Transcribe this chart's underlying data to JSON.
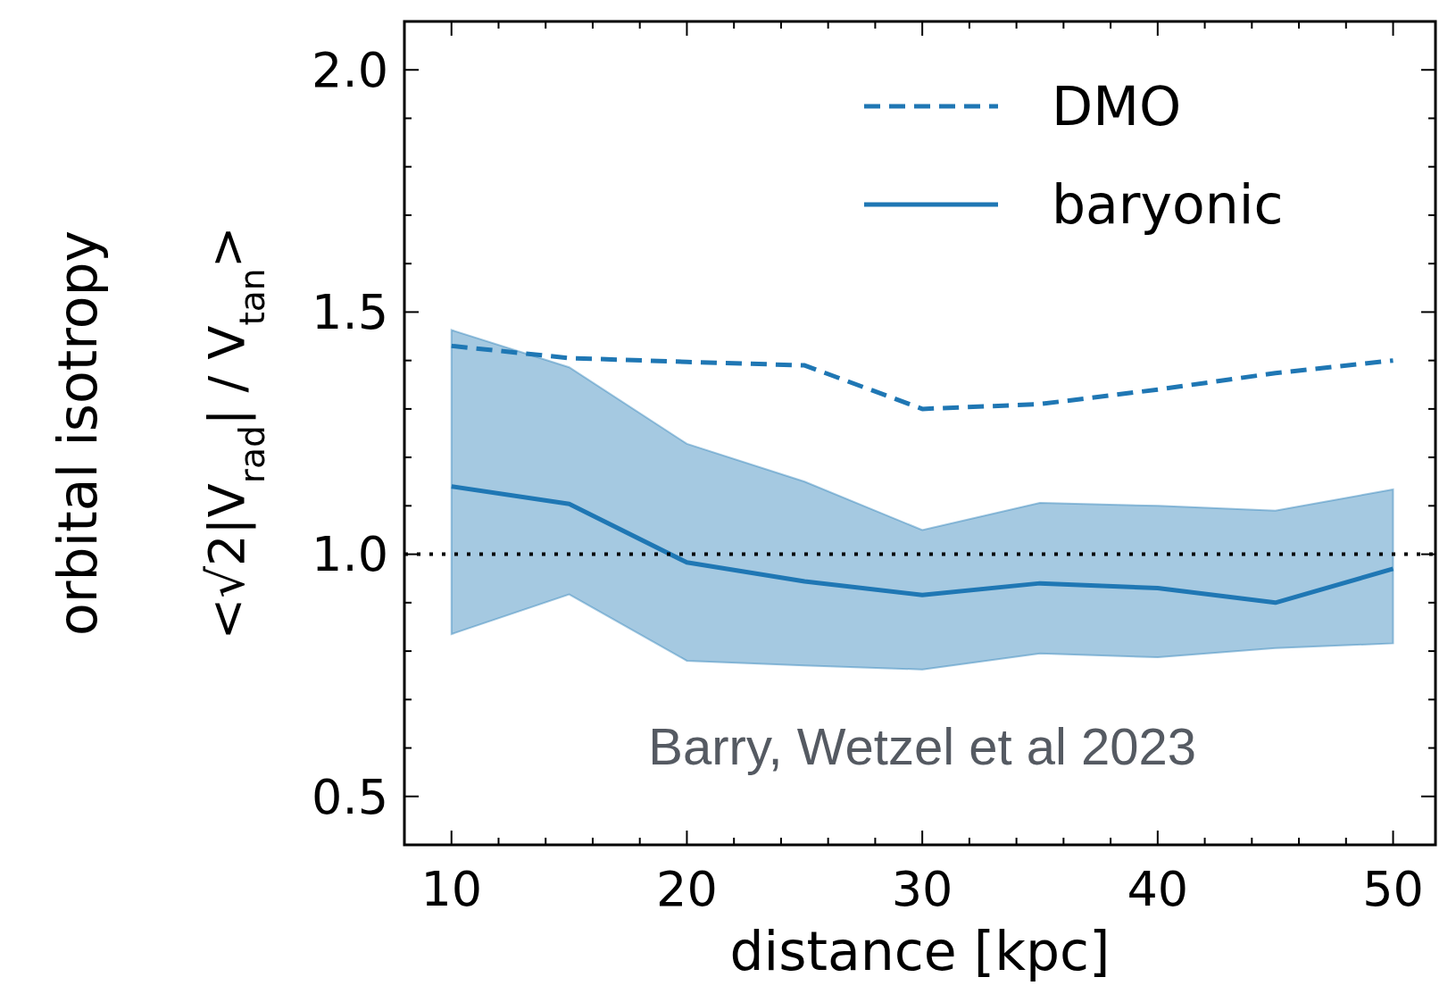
{
  "chart_data": {
    "type": "line",
    "xlabel": "distance [kpc]",
    "ylabel": "orbital isotropy\n<√2|V$_{rad}$| / V$_{tan}$>",
    "x": [
      10,
      15,
      20,
      25,
      30,
      35,
      40,
      45,
      50
    ],
    "series": [
      {
        "name": "DMO",
        "color": "#1f77b4",
        "line_style": "dashed",
        "values": [
          1.43,
          1.405,
          1.397,
          1.39,
          1.3,
          1.31,
          1.34,
          1.374,
          1.4
        ]
      },
      {
        "name": "baryonic",
        "color": "#1f77b4",
        "line_style": "solid",
        "values": [
          1.14,
          1.104,
          0.983,
          0.944,
          0.916,
          0.94,
          0.93,
          0.9,
          0.97
        ],
        "lower": [
          0.835,
          0.917,
          0.78,
          0.77,
          0.762,
          0.795,
          0.787,
          0.806,
          0.816
        ],
        "upper": [
          1.463,
          1.386,
          1.228,
          1.15,
          1.05,
          1.106,
          1.1,
          1.09,
          1.134
        ]
      }
    ],
    "xlim": [
      8,
      51.8
    ],
    "ylim": [
      0.4,
      2.1
    ],
    "xticks": [
      10,
      {
        "value": 12,
        "label": null
      },
      {
        "value": 14,
        "label": null
      },
      {
        "value": 16,
        "label": null
      },
      {
        "value": 18,
        "label": null
      },
      20,
      {
        "value": 22,
        "label": null
      },
      {
        "value": 24,
        "label": null
      },
      {
        "value": 26,
        "label": null
      },
      {
        "value": 28,
        "label": null
      },
      30,
      {
        "value": 32,
        "label": null
      },
      {
        "value": 34,
        "label": null
      },
      {
        "value": 36,
        "label": null
      },
      {
        "value": 38,
        "label": null
      },
      40,
      {
        "value": 42,
        "label": null
      },
      {
        "value": 44,
        "label": null
      },
      {
        "value": 46,
        "label": null
      },
      {
        "value": 48,
        "label": null
      },
      50
    ],
    "yticks": [
      {
        "value": 0.5,
        "label": "0.5"
      },
      {
        "value": 0.6,
        "label": null
      },
      {
        "value": 0.7,
        "label": null
      },
      {
        "value": 0.8,
        "label": null
      },
      {
        "value": 0.9,
        "label": null
      },
      {
        "value": 1.0,
        "label": "1.0"
      },
      {
        "value": 1.1,
        "label": null
      },
      {
        "value": 1.2,
        "label": null
      },
      {
        "value": 1.3,
        "label": null
      },
      {
        "value": 1.4,
        "label": null
      },
      {
        "value": 1.5,
        "label": "1.5"
      },
      {
        "value": 1.6,
        "label": null
      },
      {
        "value": 1.7,
        "label": null
      },
      {
        "value": 1.8,
        "label": null
      },
      {
        "value": 1.9,
        "label": null
      },
      {
        "value": 2.0,
        "label": "2.0"
      }
    ],
    "ref_lines": [
      {
        "axis": "y",
        "value": 1.0,
        "color": "#000000",
        "line_style": "dotted"
      }
    ],
    "annotations": [
      "Barry, Wetzel et al 2023"
    ],
    "legend": "top right",
    "grid": false
  }
}
